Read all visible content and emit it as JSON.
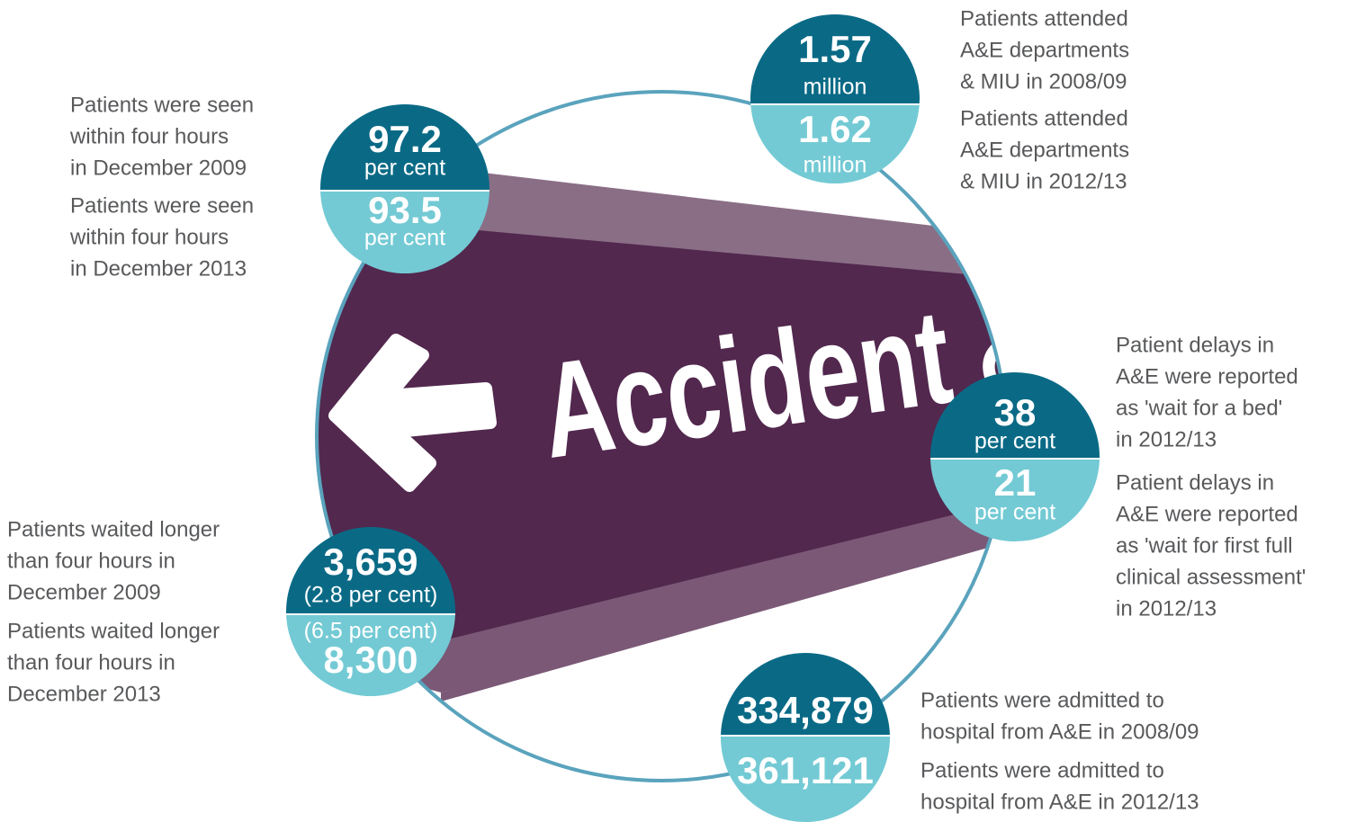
{
  "sign": {
    "text": "Accident &"
  },
  "stats": [
    {
      "top": {
        "value": "97.2",
        "note": "per cent"
      },
      "bottom": {
        "value": "93.5",
        "note": "per cent"
      },
      "top_caption": [
        "Patients were seen",
        "within four hours",
        "in December 2009"
      ],
      "bottom_caption": [
        "Patients were seen",
        "within four hours",
        "in December 2013"
      ]
    },
    {
      "top": {
        "value": "1.57",
        "note": "million"
      },
      "bottom": {
        "value": "1.62",
        "note": "million"
      },
      "top_caption": [
        "Patients attended",
        "A&E departments",
        "& MIU in 2008/09"
      ],
      "bottom_caption": [
        "Patients attended",
        "A&E departments",
        "& MIU in 2012/13"
      ]
    },
    {
      "top": {
        "value": "38",
        "note": "per cent"
      },
      "bottom": {
        "value": "21",
        "note": "per cent"
      },
      "top_caption": [
        "Patient delays in",
        "A&E were reported",
        "as 'wait for a bed'",
        "in 2012/13"
      ],
      "bottom_caption": [
        "Patient delays in",
        "A&E were reported",
        "as 'wait for first full",
        "clinical assessment'",
        "in 2012/13"
      ]
    },
    {
      "top": {
        "value": "3,659",
        "note": "(2.8 per cent)"
      },
      "bottom": {
        "note": "(6.5 per cent)",
        "value": "8,300"
      },
      "top_caption": [
        "Patients waited longer",
        "than four hours in",
        "December 2009"
      ],
      "bottom_caption": [
        "Patients waited longer",
        "than four hours in",
        "December 2013"
      ]
    },
    {
      "top": {
        "value": "334,879"
      },
      "bottom": {
        "value": "361,121"
      },
      "top_caption": [
        "Patients were admitted to",
        "hospital from A&E in 2008/09"
      ],
      "bottom_caption": [
        "Patients were admitted to",
        "hospital from A&E in 2012/13"
      ]
    }
  ]
}
